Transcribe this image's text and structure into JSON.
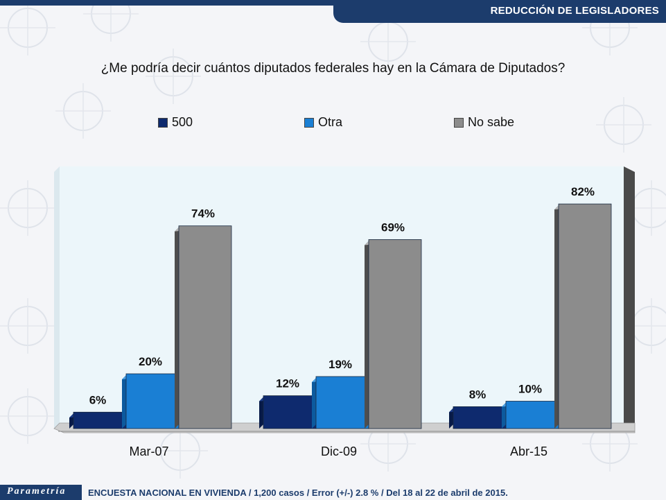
{
  "header": {
    "title": "REDUCCIÓN DE LEGISLADORES"
  },
  "question": "¿Me podría decir cuántos diputados federales hay en la Cámara de Diputados?",
  "footer": {
    "logo": "Parametría",
    "note": "ENCUESTA NACIONAL EN VIVIENDA / 1,200 casos / Error (+/-) 2.8 % / Del 18 al 22 de abril de 2015."
  },
  "colors": {
    "brand": "#1c3c6c",
    "series_500": "#0e2a6e",
    "series_otra": "#1a7fd4",
    "series_nosabe": "#8c8c8c"
  },
  "chart_data": {
    "type": "bar",
    "categories": [
      "Mar-07",
      "Dic-09",
      "Abr-15"
    ],
    "series": [
      {
        "name": "500",
        "values": [
          6,
          12,
          8
        ],
        "labels": [
          "6%",
          "12%",
          "8%"
        ]
      },
      {
        "name": "Otra",
        "values": [
          20,
          19,
          10
        ],
        "labels": [
          "20%",
          "19%",
          "10%"
        ]
      },
      {
        "name": "No sabe",
        "values": [
          74,
          69,
          82
        ],
        "labels": [
          "74%",
          "69%",
          "82%"
        ]
      }
    ],
    "ylim": [
      0,
      100
    ],
    "legend": "top",
    "grid": false,
    "three_d": true
  }
}
